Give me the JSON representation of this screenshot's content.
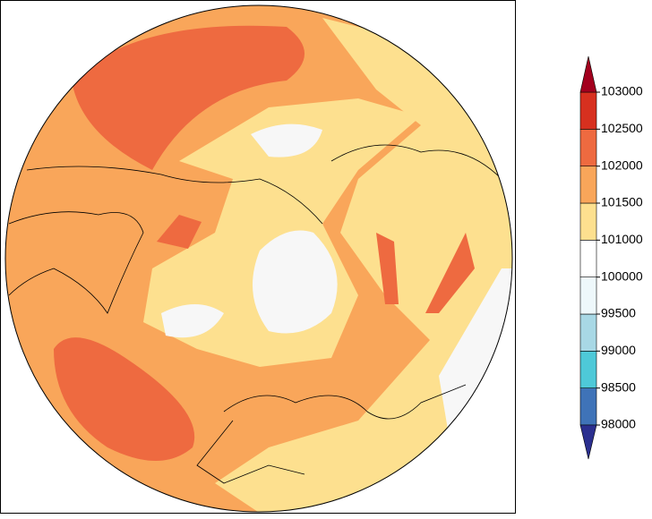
{
  "colorbar": {
    "ticks": [
      98000,
      98500,
      99000,
      99500,
      100000,
      101000,
      101500,
      102000,
      102500,
      103000
    ],
    "colors": [
      "#3f73b8",
      "#4ec9d8",
      "#a8d8e5",
      "#eef8fb",
      "#ffffff",
      "#fde08f",
      "#f9a65a",
      "#ee6a40",
      "#d7301f"
    ],
    "under_color": "#2b2f8f",
    "over_color": "#a3001e"
  }
}
